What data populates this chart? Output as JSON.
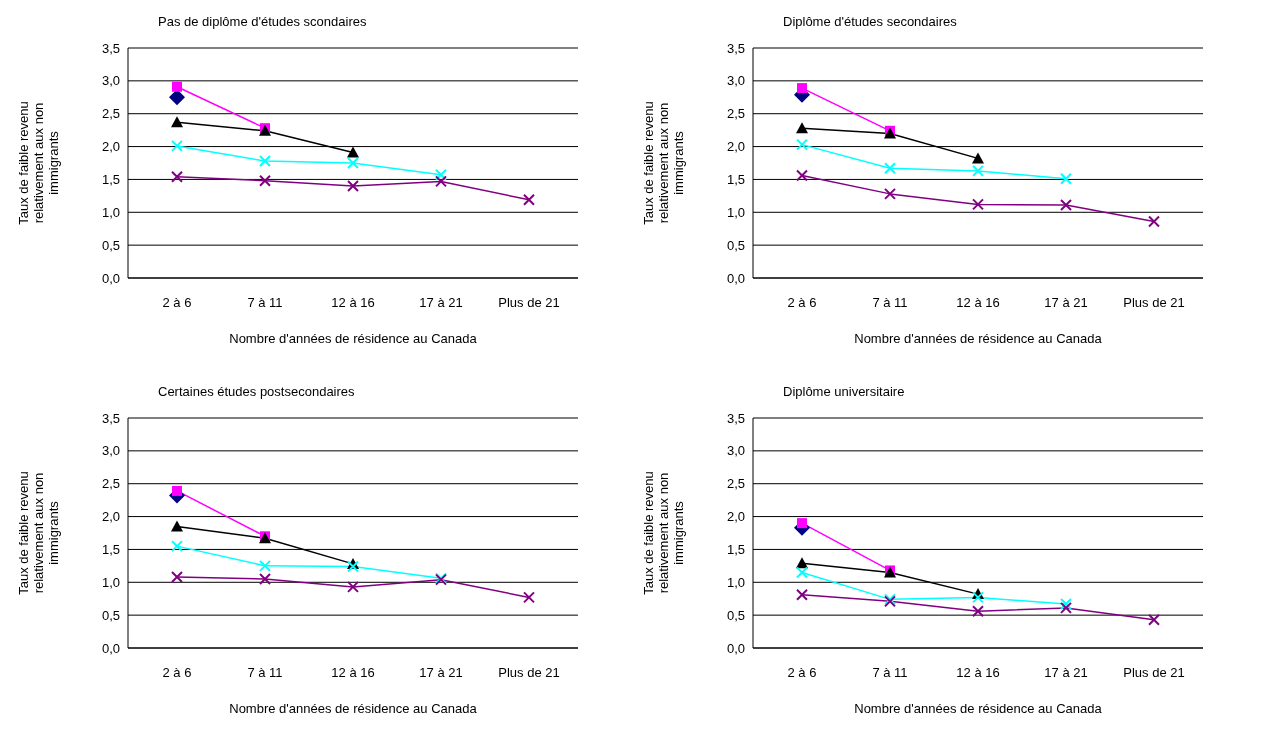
{
  "chart_data": [
    {
      "type": "line",
      "title": "Pas de diplôme d'études scondaires",
      "xlabel": "Nombre d'années de résidence au Canada",
      "ylabel": "Taux de faible revenu relativement aux non immigrants",
      "categories": [
        "2 à  6",
        "7 à 11",
        "12 à 16",
        "17 à 21",
        "Plus de 21"
      ],
      "ylim": [
        0,
        3.5
      ],
      "yticks": [
        {
          "value": 0,
          "label": "0,0"
        },
        {
          "value": 0.5,
          "label": "0,5"
        },
        {
          "value": 1,
          "label": "1,0"
        },
        {
          "value": 1.5,
          "label": "1,5"
        },
        {
          "value": 2,
          "label": "2,0"
        },
        {
          "value": 2.5,
          "label": "2,5"
        },
        {
          "value": 3,
          "label": "3,0"
        },
        {
          "value": 3.5,
          "label": "3,5"
        }
      ],
      "grid": "y",
      "legend": false,
      "series": [
        {
          "color": "#000080",
          "marker": "diamond",
          "values": [
            2.75,
            null,
            null,
            null,
            null
          ]
        },
        {
          "color": "#ff00ff",
          "marker": "square",
          "values": [
            2.91,
            2.28,
            null,
            null,
            null
          ]
        },
        {
          "color": "#000000",
          "marker": "triangle",
          "values": [
            2.37,
            2.24,
            1.91,
            null,
            null
          ]
        },
        {
          "color": "#00ffff",
          "marker": "cross",
          "values": [
            2.01,
            1.78,
            1.75,
            1.57,
            null
          ]
        },
        {
          "color": "#800080",
          "marker": "cross",
          "values": [
            1.54,
            1.48,
            1.4,
            1.47,
            1.19
          ]
        }
      ]
    },
    {
      "type": "line",
      "title": "Diplôme d'études secondaires",
      "xlabel": "Nombre d'années de résidence au Canada",
      "ylabel": "Taux de faible revenu relativement aux non immigrants",
      "categories": [
        "2 à 6",
        "7 à 11",
        "12 à 16",
        "17 à 21",
        "Plus de 21"
      ],
      "ylim": [
        0,
        3.5
      ],
      "yticks": [
        {
          "value": 0,
          "label": "0,0"
        },
        {
          "value": 0.5,
          "label": "0,5"
        },
        {
          "value": 1,
          "label": "1,0"
        },
        {
          "value": 1.5,
          "label": "1,5"
        },
        {
          "value": 2,
          "label": "2,0"
        },
        {
          "value": 2.5,
          "label": "2,5"
        },
        {
          "value": 3,
          "label": "3,0"
        },
        {
          "value": 3.5,
          "label": "3,5"
        }
      ],
      "grid": "y",
      "legend": false,
      "series": [
        {
          "color": "#000080",
          "marker": "diamond",
          "values": [
            2.79,
            null,
            null,
            null,
            null
          ]
        },
        {
          "color": "#ff00ff",
          "marker": "square",
          "values": [
            2.89,
            2.24,
            null,
            null,
            null
          ]
        },
        {
          "color": "#000000",
          "marker": "triangle",
          "values": [
            2.28,
            2.2,
            1.82,
            null,
            null
          ]
        },
        {
          "color": "#00ffff",
          "marker": "cross",
          "values": [
            2.03,
            1.67,
            1.63,
            1.51,
            null
          ]
        },
        {
          "color": "#800080",
          "marker": "cross",
          "values": [
            1.56,
            1.28,
            1.12,
            1.11,
            0.86
          ]
        }
      ]
    },
    {
      "type": "line",
      "title": "Certaines études postsecondaires",
      "xlabel": "Nombre d'années de résidence au Canada",
      "ylabel": "Taux de faible revenu relativement aux non immigrants",
      "categories": [
        "2 à 6",
        "7 à 11",
        "12 à 16",
        "17 à 21",
        "Plus de 21"
      ],
      "ylim": [
        0,
        3.5
      ],
      "yticks": [
        {
          "value": 0,
          "label": "0,0"
        },
        {
          "value": 0.5,
          "label": "0,5"
        },
        {
          "value": 1,
          "label": "1,0"
        },
        {
          "value": 1.5,
          "label": "1,5"
        },
        {
          "value": 2,
          "label": "2,0"
        },
        {
          "value": 2.5,
          "label": "2,5"
        },
        {
          "value": 3,
          "label": "3,0"
        },
        {
          "value": 3.5,
          "label": "3,5"
        }
      ],
      "grid": "y",
      "legend": false,
      "series": [
        {
          "color": "#000080",
          "marker": "diamond",
          "values": [
            2.32,
            null,
            null,
            null,
            null
          ]
        },
        {
          "color": "#ff00ff",
          "marker": "square",
          "values": [
            2.39,
            1.7,
            null,
            null,
            null
          ]
        },
        {
          "color": "#000000",
          "marker": "triangle",
          "values": [
            1.85,
            1.67,
            1.28,
            null,
            null
          ]
        },
        {
          "color": "#00ffff",
          "marker": "cross",
          "values": [
            1.55,
            1.25,
            1.24,
            1.06,
            null
          ]
        },
        {
          "color": "#800080",
          "marker": "cross",
          "values": [
            1.08,
            1.05,
            0.93,
            1.04,
            0.77
          ]
        }
      ]
    },
    {
      "type": "line",
      "title": "Diplôme universitaire",
      "xlabel": "Nombre d'années de résidence au Canada",
      "ylabel": "Taux de faible revenu relativement aux non immigrants",
      "categories": [
        "2 à 6",
        "7 à 11",
        "12 à 16",
        "17 à 21",
        "Plus de 21"
      ],
      "ylim": [
        0,
        3.5
      ],
      "yticks": [
        {
          "value": 0,
          "label": "0,0"
        },
        {
          "value": 0.5,
          "label": "0,5"
        },
        {
          "value": 1,
          "label": "1,0"
        },
        {
          "value": 1.5,
          "label": "1,5"
        },
        {
          "value": 2,
          "label": "2,0"
        },
        {
          "value": 2.5,
          "label": "2,5"
        },
        {
          "value": 3,
          "label": "3,0"
        },
        {
          "value": 3.5,
          "label": "3,5"
        }
      ],
      "grid": "y",
      "legend": false,
      "series": [
        {
          "color": "#000080",
          "marker": "diamond",
          "values": [
            1.83,
            null,
            null,
            null,
            null
          ]
        },
        {
          "color": "#ff00ff",
          "marker": "square",
          "values": [
            1.9,
            1.18,
            null,
            null,
            null
          ]
        },
        {
          "color": "#000000",
          "marker": "triangle",
          "values": [
            1.29,
            1.15,
            0.82,
            null,
            null
          ]
        },
        {
          "color": "#00ffff",
          "marker": "cross",
          "values": [
            1.15,
            0.74,
            0.77,
            0.67,
            null
          ]
        },
        {
          "color": "#800080",
          "marker": "cross",
          "values": [
            0.81,
            0.71,
            0.56,
            0.61,
            0.43
          ]
        }
      ]
    }
  ]
}
